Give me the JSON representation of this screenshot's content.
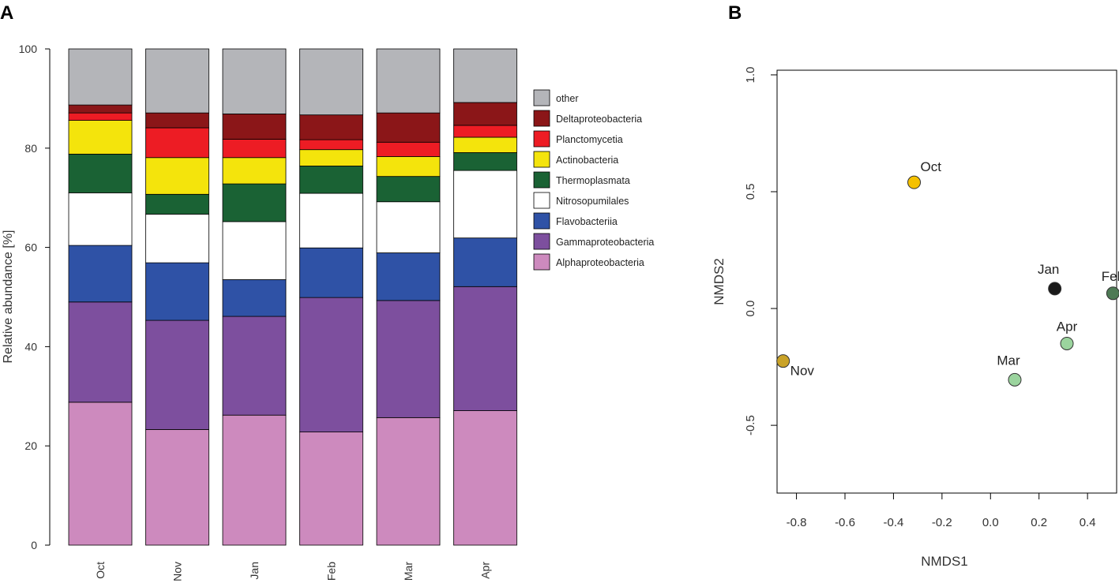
{
  "chart_data": [
    {
      "panel_label": "A",
      "type": "bar",
      "stacked": true,
      "ylabel": "Relative abundance [%]",
      "xlabel": "",
      "ylim": [
        0,
        100
      ],
      "yticks": [
        0,
        20,
        40,
        60,
        80,
        100
      ],
      "categories": [
        "Oct",
        "Nov",
        "Jan",
        "Feb",
        "Mar",
        "Apr"
      ],
      "legend_position": "right",
      "series": [
        {
          "name": "Alphaproteobacteria",
          "color": "#cd8abe",
          "values": [
            28.8,
            23.3,
            26.2,
            22.8,
            25.7,
            27.1
          ]
        },
        {
          "name": "Gammaproteobacteria",
          "color": "#7d4f9e",
          "values": [
            20.2,
            22.0,
            19.9,
            27.1,
            23.6,
            25.0
          ]
        },
        {
          "name": "Flavobacteriia",
          "color": "#2f52a6",
          "values": [
            11.4,
            11.6,
            7.4,
            10.0,
            9.6,
            9.8
          ]
        },
        {
          "name": "Nitrosopumilales",
          "color": "#ffffff",
          "values": [
            10.6,
            9.8,
            11.7,
            11.0,
            10.3,
            13.6
          ]
        },
        {
          "name": "Thermoplasmata",
          "color": "#1a6234",
          "values": [
            7.8,
            4.0,
            7.6,
            5.5,
            5.1,
            3.6
          ]
        },
        {
          "name": "Actinobacteria",
          "color": "#f4e40c",
          "values": [
            6.8,
            7.4,
            5.3,
            3.3,
            4.0,
            3.1
          ]
        },
        {
          "name": "Planctomycetia",
          "color": "#ed1c24",
          "values": [
            1.5,
            6.0,
            3.7,
            2.0,
            2.9,
            2.4
          ]
        },
        {
          "name": "Deltaproteobacteria",
          "color": "#8b1618",
          "values": [
            1.6,
            3.0,
            5.1,
            5.0,
            5.9,
            4.6
          ]
        },
        {
          "name": "other",
          "color": "#b4b5b9",
          "values": [
            11.3,
            12.9,
            13.1,
            13.3,
            12.9,
            10.8
          ]
        }
      ]
    },
    {
      "panel_label": "B",
      "type": "scatter",
      "xlabel": "NMDS1",
      "ylabel": "NMDS2",
      "xlim": [
        -0.88,
        0.52
      ],
      "ylim": [
        -0.79,
        1.02
      ],
      "xticks": [
        "-0.8",
        "-0.6",
        "-0.4",
        "-0.2",
        "0.0",
        "0.2",
        "0.4"
      ],
      "yticks": [
        "-0.5",
        "0.0",
        "0.5",
        "1.0"
      ],
      "points": [
        {
          "label": "Oct",
          "x": -0.315,
          "y": 0.54,
          "color": "#f5c100",
          "label_pos": "upper-right"
        },
        {
          "label": "Nov",
          "x": -0.855,
          "y": -0.225,
          "color": "#c9a227",
          "label_pos": "lower-right"
        },
        {
          "label": "Jan",
          "x": 0.265,
          "y": 0.085,
          "color": "#1a1a1a",
          "label_pos": "above-left"
        },
        {
          "label": "Feb",
          "x": 0.505,
          "y": 0.065,
          "color": "#4e7a55",
          "label_pos": "above"
        },
        {
          "label": "Mar",
          "x": 0.1,
          "y": -0.305,
          "color": "#9bd49e",
          "label_pos": "above-left"
        },
        {
          "label": "Apr",
          "x": 0.315,
          "y": -0.15,
          "color": "#9bd49e",
          "label_pos": "above"
        }
      ]
    }
  ]
}
